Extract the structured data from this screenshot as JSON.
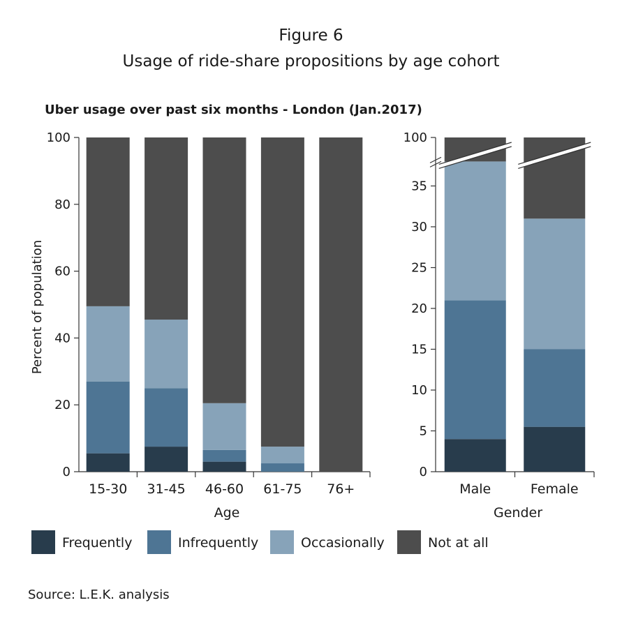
{
  "figure_label": "Figure 6",
  "figure_title": "Usage of ride-share propositions by age cohort",
  "source": "Source: L.E.K. analysis",
  "colors": {
    "Frequently": "#283c4c",
    "Infrequently": "#4e7594",
    "Occasionally": "#87a3b9",
    "Not at all": "#4d4d4d"
  },
  "chart_data": [
    {
      "type": "bar",
      "stacked": true,
      "title": "Uber usage over past six months - London (Jan.2017)",
      "xlabel": "Age",
      "ylabel": "Percent of population",
      "ylim": [
        0,
        100
      ],
      "yticks": [
        0,
        20,
        40,
        60,
        80,
        100
      ],
      "categories": [
        "15-30",
        "31-45",
        "46-60",
        "61-75",
        "76+"
      ],
      "series": [
        {
          "name": "Frequently",
          "values": [
            5.5,
            7.5,
            3,
            0,
            0
          ]
        },
        {
          "name": "Infrequently",
          "values": [
            21.5,
            17.5,
            3.5,
            2.5,
            0
          ]
        },
        {
          "name": "Occasionally",
          "values": [
            22.5,
            20.5,
            14,
            5,
            0
          ]
        },
        {
          "name": "Not at all",
          "values": [
            50.5,
            54.5,
            79.5,
            92.5,
            100
          ]
        }
      ]
    },
    {
      "type": "bar",
      "stacked": true,
      "xlabel": "Gender",
      "ylim": [
        0,
        100
      ],
      "axis_break": [
        38,
        100
      ],
      "yticks": [
        0,
        5,
        10,
        15,
        20,
        25,
        30,
        35,
        100
      ],
      "categories": [
        "Male",
        "Female"
      ],
      "series": [
        {
          "name": "Frequently",
          "values": [
            4,
            5.5
          ]
        },
        {
          "name": "Infrequently",
          "values": [
            17,
            9.5
          ]
        },
        {
          "name": "Occasionally",
          "values": [
            17,
            16
          ]
        },
        {
          "name": "Not at all",
          "values": [
            62,
            69
          ]
        }
      ]
    }
  ],
  "legend": [
    "Frequently",
    "Infrequently",
    "Occasionally",
    "Not at all"
  ]
}
